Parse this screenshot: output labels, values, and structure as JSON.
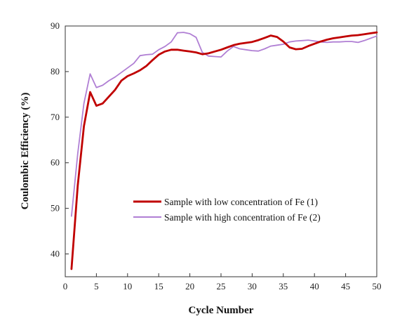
{
  "chart_data": {
    "type": "line",
    "title": "",
    "xlabel": "Cycle Number",
    "ylabel": "Coulombic Efficiency (%)",
    "xlim": [
      0,
      50
    ],
    "ylim": [
      35,
      90
    ],
    "xticks": [
      0,
      5,
      10,
      15,
      20,
      25,
      30,
      35,
      40,
      45,
      50
    ],
    "yticks": [
      40,
      50,
      60,
      70,
      80,
      90
    ],
    "grid": false,
    "legend_position": "center-right",
    "series": [
      {
        "name": "Sample with low concentration of Fe (1)",
        "color": "#c00000",
        "x": [
          1,
          2,
          3,
          4,
          5,
          6,
          7,
          8,
          9,
          10,
          11,
          12,
          13,
          14,
          15,
          16,
          17,
          18,
          19,
          20,
          21,
          22,
          23,
          24,
          25,
          26,
          27,
          28,
          29,
          30,
          31,
          32,
          33,
          34,
          35,
          36,
          37,
          38,
          39,
          40,
          41,
          42,
          43,
          44,
          45,
          46,
          47,
          48,
          49,
          50
        ],
        "values": [
          36.7,
          55.0,
          68.0,
          75.5,
          72.5,
          73.0,
          74.5,
          76.0,
          78.0,
          79.0,
          79.6,
          80.3,
          81.2,
          82.5,
          83.7,
          84.4,
          84.8,
          84.8,
          84.6,
          84.4,
          84.2,
          83.8,
          84.0,
          84.4,
          84.8,
          85.3,
          85.8,
          86.1,
          86.3,
          86.5,
          86.9,
          87.4,
          87.9,
          87.6,
          86.6,
          85.3,
          84.9,
          85.0,
          85.6,
          86.1,
          86.6,
          87.0,
          87.3,
          87.5,
          87.7,
          87.9,
          88.0,
          88.2,
          88.4,
          88.6
        ]
      },
      {
        "name": "Sample with high concentration of Fe (2)",
        "color": "#b07fd4",
        "x": [
          1,
          2,
          3,
          4,
          5,
          6,
          7,
          8,
          9,
          10,
          11,
          12,
          13,
          14,
          15,
          16,
          17,
          18,
          19,
          20,
          21,
          22,
          23,
          24,
          25,
          26,
          27,
          28,
          29,
          30,
          31,
          32,
          33,
          34,
          35,
          36,
          37,
          38,
          39,
          40,
          41,
          42,
          43,
          44,
          45,
          46,
          47,
          48,
          49,
          50
        ],
        "values": [
          48.3,
          62.0,
          73.0,
          79.5,
          76.5,
          77.0,
          78.0,
          78.8,
          79.8,
          80.8,
          81.8,
          83.5,
          83.7,
          83.8,
          84.8,
          85.5,
          86.5,
          88.5,
          88.6,
          88.3,
          87.5,
          84.2,
          83.4,
          83.3,
          83.2,
          84.5,
          85.5,
          85.0,
          84.8,
          84.6,
          84.5,
          85.0,
          85.6,
          85.8,
          86.0,
          86.5,
          86.7,
          86.8,
          86.9,
          86.7,
          86.5,
          86.4,
          86.5,
          86.5,
          86.6,
          86.6,
          86.4,
          86.8,
          87.3,
          87.8
        ]
      }
    ]
  }
}
